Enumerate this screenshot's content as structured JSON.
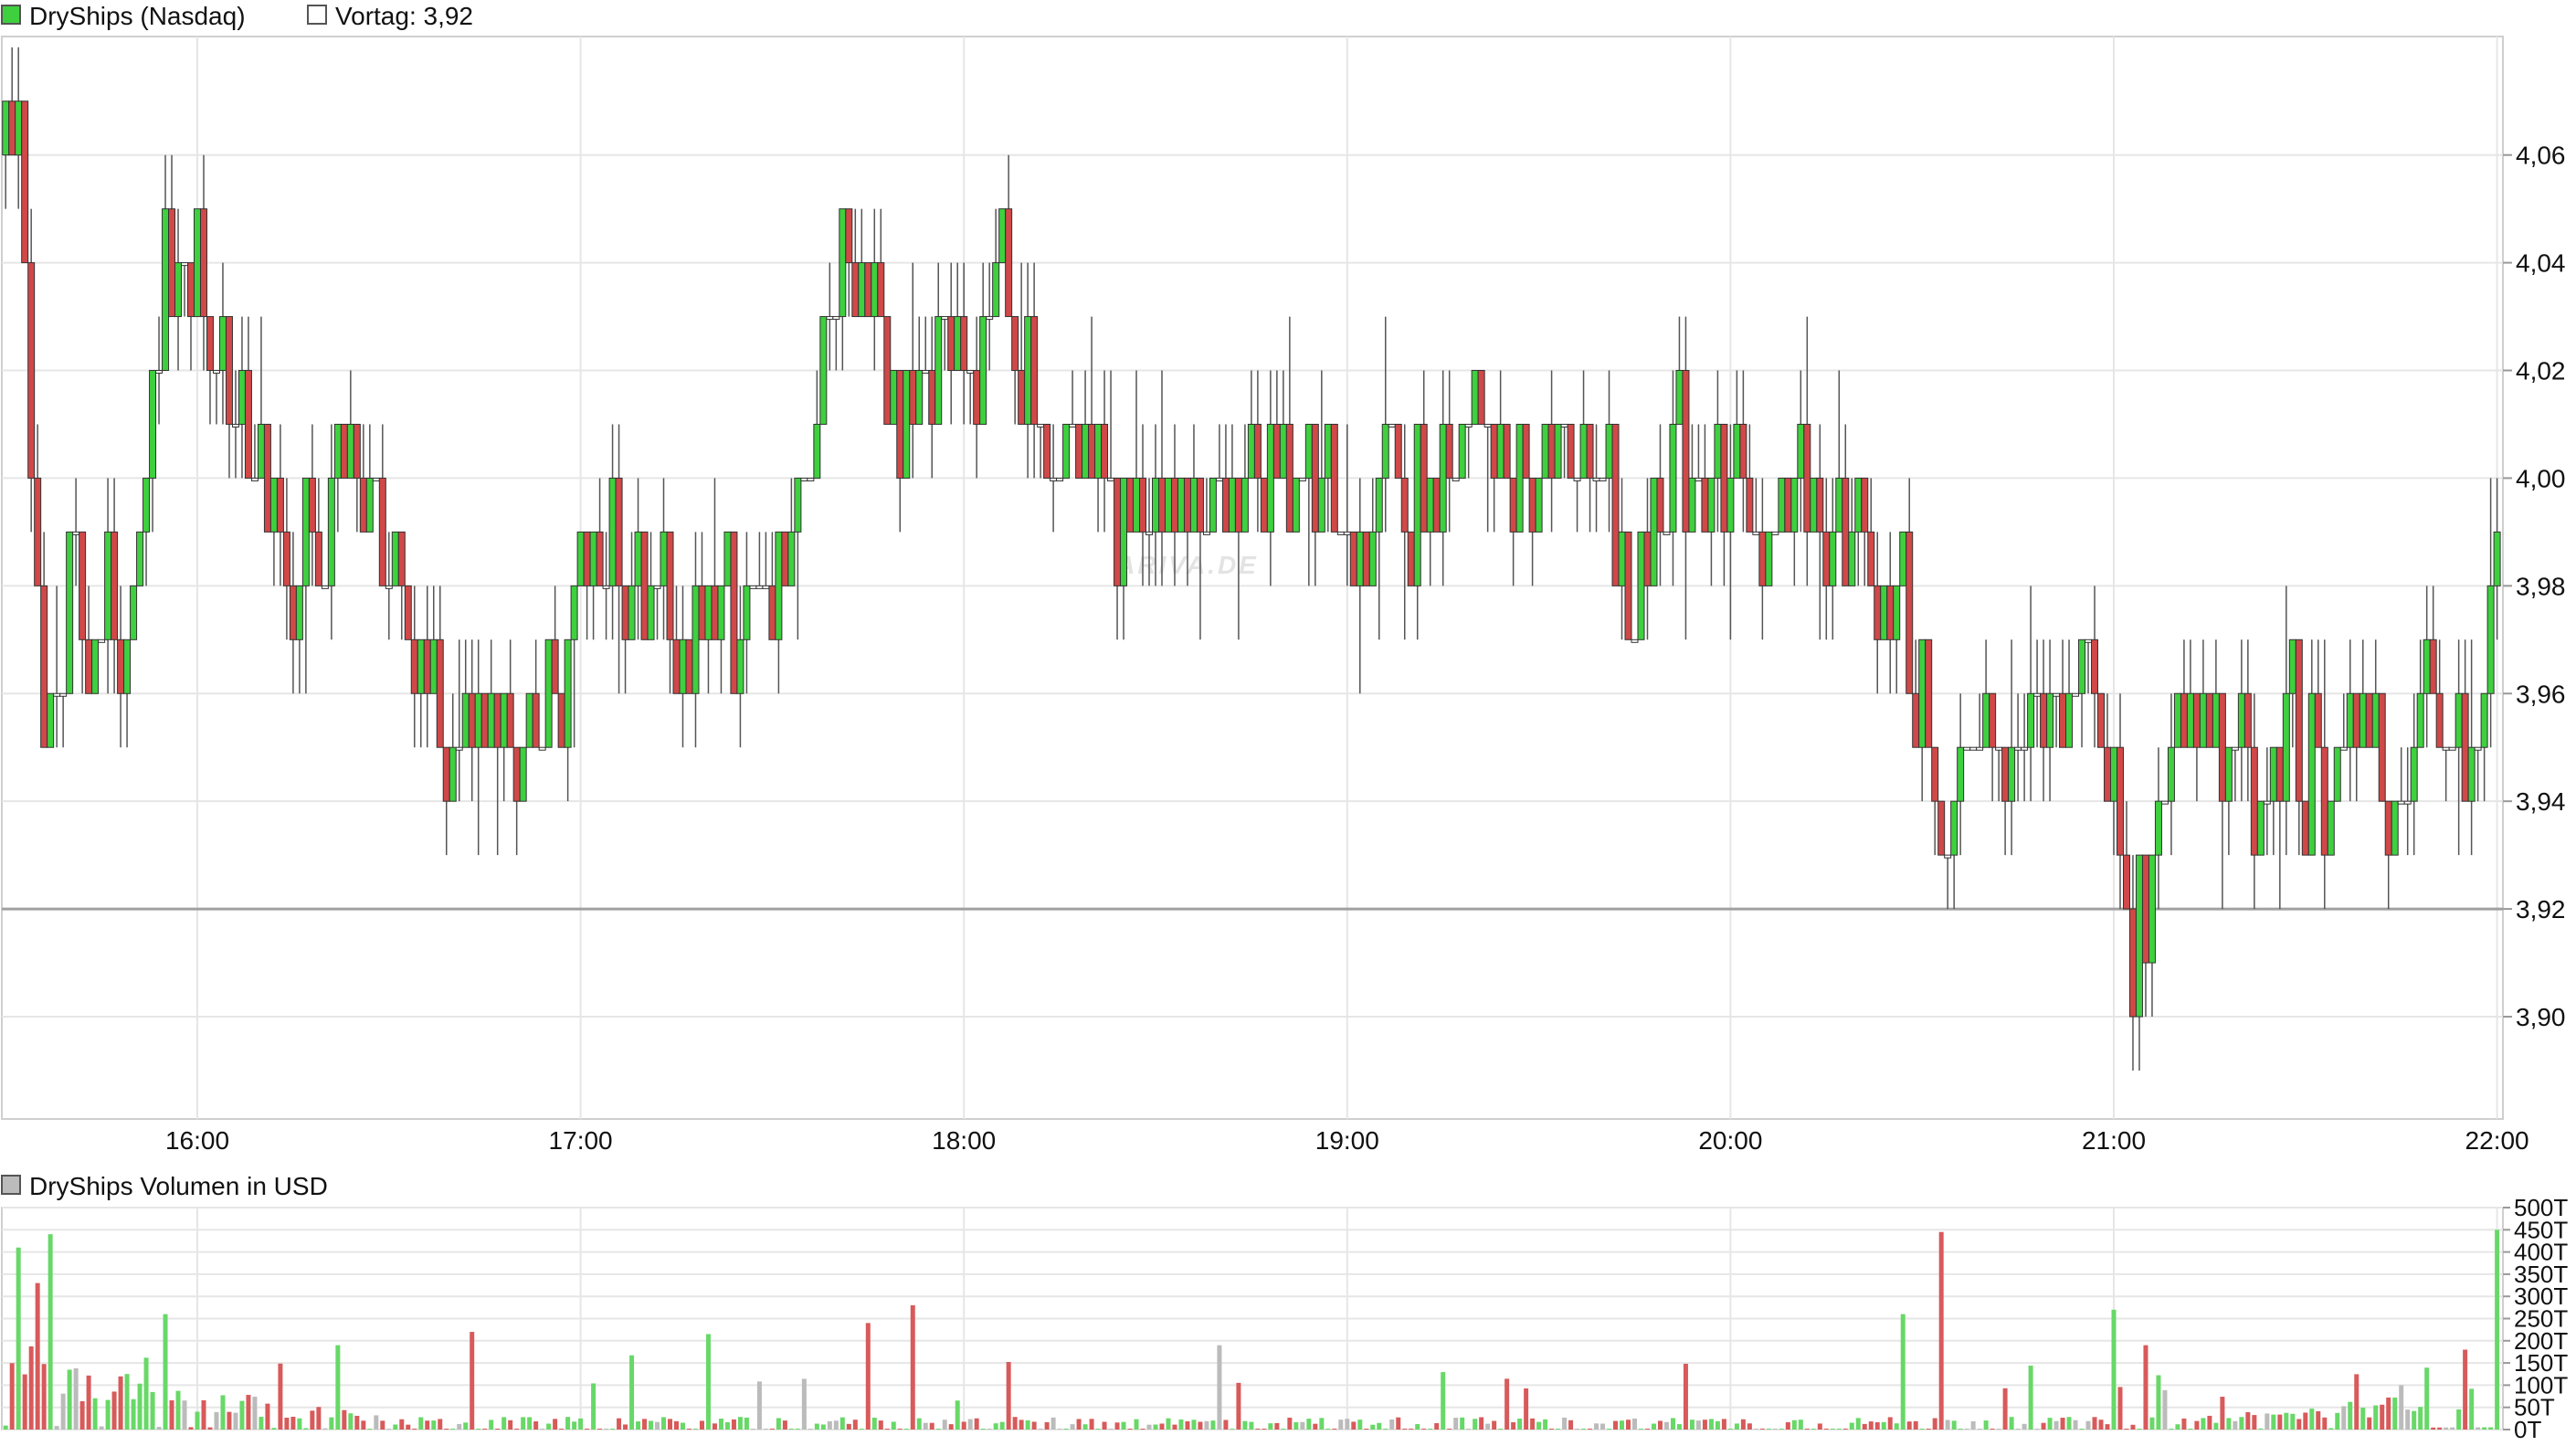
{
  "chart_data": [
    {
      "type": "candlestick",
      "legend": [
        {
          "label": "DryShips (Nasdaq)",
          "color": "#3ed03e"
        },
        {
          "label": "Vortag: 3,92",
          "color": "#ffffff"
        }
      ],
      "x_ticks": [
        "16:00",
        "17:00",
        "18:00",
        "19:00",
        "20:00",
        "21:00",
        "22:00"
      ],
      "y_ticks": [
        "4,06",
        "4,04",
        "4,02",
        "4,00",
        "3,98",
        "3,96",
        "3,94",
        "3,92",
        "3,90"
      ],
      "ylim": [
        3.881,
        4.082
      ],
      "reference_line": 3.92,
      "grid": true,
      "watermark": "ARIVA.DE",
      "up_color": "#3ed03e",
      "down_color": "#d04848",
      "price_path": [
        [
          "15:30",
          4.06
        ],
        [
          "15:32",
          4.07
        ],
        [
          "15:35",
          3.97
        ],
        [
          "15:37",
          3.95
        ],
        [
          "15:40",
          3.98
        ],
        [
          "15:43",
          3.97
        ],
        [
          "15:46",
          3.98
        ],
        [
          "15:49",
          3.97
        ],
        [
          "15:52",
          4.0
        ],
        [
          "15:55",
          4.04
        ],
        [
          "15:58",
          4.03
        ],
        [
          "16:00",
          4.04
        ],
        [
          "16:05",
          4.02
        ],
        [
          "16:10",
          4.01
        ],
        [
          "16:15",
          3.97
        ],
        [
          "16:17",
          4.0
        ],
        [
          "16:20",
          3.98
        ],
        [
          "16:22",
          4.02
        ],
        [
          "16:25",
          3.99
        ],
        [
          "16:30",
          3.99
        ],
        [
          "16:35",
          3.96
        ],
        [
          "16:40",
          3.95
        ],
        [
          "16:45",
          3.96
        ],
        [
          "16:50",
          3.95
        ],
        [
          "16:55",
          3.96
        ],
        [
          "17:00",
          3.98
        ],
        [
          "17:05",
          3.99
        ],
        [
          "17:10",
          3.98
        ],
        [
          "17:15",
          3.97
        ],
        [
          "17:20",
          3.98
        ],
        [
          "17:25",
          3.97
        ],
        [
          "17:30",
          3.98
        ],
        [
          "17:35",
          4.0
        ],
        [
          "17:38",
          4.02
        ],
        [
          "17:42",
          4.04
        ],
        [
          "17:45",
          4.03
        ],
        [
          "17:50",
          4.01
        ],
        [
          "17:55",
          4.02
        ],
        [
          "17:58",
          4.04
        ],
        [
          "18:00",
          4.02
        ],
        [
          "18:05",
          4.03
        ],
        [
          "18:10",
          4.02
        ],
        [
          "18:15",
          4.0
        ],
        [
          "18:20",
          4.0
        ],
        [
          "18:25",
          3.99
        ],
        [
          "18:30",
          4.0
        ],
        [
          "18:40",
          3.99
        ],
        [
          "18:50",
          4.0
        ],
        [
          "19:00",
          3.99
        ],
        [
          "19:05",
          4.0
        ],
        [
          "19:10",
          4.0
        ],
        [
          "19:20",
          4.01
        ],
        [
          "19:30",
          4.0
        ],
        [
          "19:35",
          4.01
        ],
        [
          "19:40",
          4.0
        ],
        [
          "19:45",
          3.98
        ],
        [
          "19:50",
          4.0
        ],
        [
          "20:00",
          4.0
        ],
        [
          "20:05",
          3.99
        ],
        [
          "20:10",
          4.0
        ],
        [
          "20:15",
          3.99
        ],
        [
          "20:20",
          3.99
        ],
        [
          "20:25",
          3.98
        ],
        [
          "20:30",
          3.96
        ],
        [
          "20:33",
          3.93
        ],
        [
          "20:36",
          3.94
        ],
        [
          "20:40",
          3.95
        ],
        [
          "20:45",
          3.95
        ],
        [
          "20:50",
          3.96
        ],
        [
          "20:55",
          3.97
        ],
        [
          "20:57",
          3.96
        ],
        [
          "21:00",
          3.94
        ],
        [
          "21:02",
          3.91
        ],
        [
          "21:05",
          3.92
        ],
        [
          "21:08",
          3.94
        ],
        [
          "21:10",
          3.96
        ],
        [
          "21:15",
          3.95
        ],
        [
          "21:20",
          3.94
        ],
        [
          "21:25",
          3.95
        ],
        [
          "21:30",
          3.95
        ],
        [
          "21:35",
          3.94
        ],
        [
          "21:40",
          3.96
        ],
        [
          "21:45",
          3.94
        ],
        [
          "21:50",
          3.96
        ],
        [
          "21:55",
          3.94
        ],
        [
          "21:58",
          3.95
        ],
        [
          "22:00",
          3.99
        ]
      ]
    },
    {
      "type": "bar",
      "legend": [
        {
          "label": "DryShips Volumen in USD",
          "color": "#bbbbbb"
        }
      ],
      "y_ticks": [
        "500T",
        "450T",
        "400T",
        "350T",
        "300T",
        "250T",
        "200T",
        "150T",
        "100T",
        "50T",
        "0T"
      ],
      "ylim": [
        0,
        500
      ],
      "grid": true,
      "peaks": [
        [
          "15:32",
          410
        ],
        [
          "15:35",
          330
        ],
        [
          "15:37",
          440
        ],
        [
          "15:55",
          260
        ],
        [
          "16:22",
          190
        ],
        [
          "16:43",
          220
        ],
        [
          "17:20",
          215
        ],
        [
          "17:45",
          240
        ],
        [
          "17:52",
          280
        ],
        [
          "18:40",
          190
        ],
        [
          "20:27",
          260
        ],
        [
          "20:33",
          445
        ],
        [
          "21:00",
          270
        ],
        [
          "21:05",
          190
        ],
        [
          "21:45",
          100
        ],
        [
          "21:55",
          180
        ],
        [
          "22:00",
          450
        ]
      ],
      "base_level": 25
    }
  ]
}
